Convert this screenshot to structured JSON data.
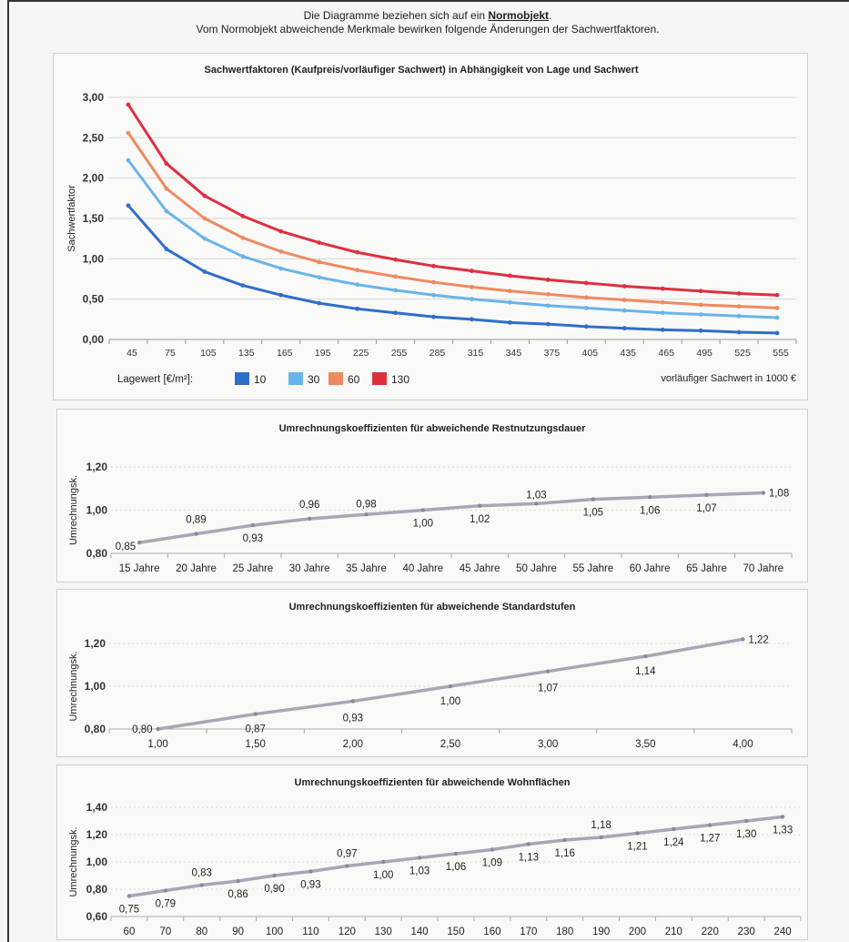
{
  "header": {
    "line1_prefix": "Die Diagramme beziehen sich auf ein ",
    "line1_link": "Normobjekt",
    "line1_suffix": ".",
    "line2": "Vom Normobjekt abweichende Merkmale bewirken folgende Änderungen der Sachwertfaktoren."
  },
  "legend": {
    "prefix": "Lagewert [€/m²]:"
  },
  "chart_data": [
    {
      "type": "line",
      "title": "Sachwertfaktoren (Kaufpreis/vorläufiger Sachwert) in Abhängigkeit von Lage und Sachwert",
      "xlabel": "vorläufiger Sachwert in 1000 €",
      "ylabel": "Sachwertfaktor",
      "ylim": [
        0,
        3
      ],
      "yticks": [
        "0,00",
        "0,50",
        "1,00",
        "1,50",
        "2,00",
        "2,50",
        "3,00"
      ],
      "categories": [
        "45",
        "75",
        "105",
        "135",
        "165",
        "195",
        "225",
        "255",
        "285",
        "315",
        "345",
        "375",
        "405",
        "435",
        "465",
        "495",
        "525",
        "555"
      ],
      "legend_position": "bottom-left",
      "grid": true,
      "series": [
        {
          "name": "10",
          "color": "#2f6ec7",
          "values": [
            1.66,
            1.12,
            0.84,
            0.67,
            0.55,
            0.45,
            0.38,
            0.33,
            0.28,
            0.25,
            0.21,
            0.19,
            0.16,
            0.14,
            0.12,
            0.11,
            0.09,
            0.08
          ]
        },
        {
          "name": "30",
          "color": "#69b4e8",
          "values": [
            2.22,
            1.59,
            1.25,
            1.03,
            0.88,
            0.77,
            0.68,
            0.61,
            0.55,
            0.5,
            0.46,
            0.42,
            0.39,
            0.36,
            0.33,
            0.31,
            0.29,
            0.27
          ]
        },
        {
          "name": "60",
          "color": "#ee8a62",
          "values": [
            2.56,
            1.87,
            1.5,
            1.26,
            1.09,
            0.96,
            0.86,
            0.78,
            0.71,
            0.65,
            0.6,
            0.56,
            0.52,
            0.49,
            0.46,
            0.43,
            0.41,
            0.39
          ]
        },
        {
          "name": "130",
          "color": "#dc3040",
          "values": [
            2.91,
            2.18,
            1.78,
            1.53,
            1.34,
            1.2,
            1.08,
            0.99,
            0.91,
            0.85,
            0.79,
            0.74,
            0.7,
            0.66,
            0.63,
            0.6,
            0.57,
            0.55
          ]
        }
      ]
    },
    {
      "type": "line",
      "title": "Umrechnungskoeffizienten für abweichende Restnutzungsdauer",
      "ylabel": "Umrechnungsk.",
      "ylim": [
        0.8,
        1.2
      ],
      "yticks": [
        "0,80",
        "1,00",
        "1,20"
      ],
      "categories": [
        "15 Jahre",
        "20 Jahre",
        "25 Jahre",
        "30 Jahre",
        "35 Jahre",
        "40 Jahre",
        "45 Jahre",
        "50 Jahre",
        "55 Jahre",
        "60 Jahre",
        "65 Jahre",
        "70 Jahre"
      ],
      "values": [
        0.85,
        0.89,
        0.93,
        0.96,
        0.98,
        1.0,
        1.02,
        1.03,
        1.05,
        1.06,
        1.07,
        1.08
      ],
      "labels": [
        "0,85",
        "0,89",
        "0,93",
        "0,96",
        "0,98",
        "1,00",
        "1,02",
        "1,03",
        "1,05",
        "1,06",
        "1,07",
        "1,08"
      ]
    },
    {
      "type": "line",
      "title": "Umrechnungskoeffizienten für abweichende Standardstufen",
      "ylabel": "Umrechnungsk.",
      "ylim": [
        0.8,
        1.2
      ],
      "yticks": [
        "0,80",
        "1,00",
        "1,20"
      ],
      "categories": [
        "1,00",
        "1,50",
        "2,00",
        "2,50",
        "3,00",
        "3,50",
        "4,00"
      ],
      "values": [
        0.8,
        0.87,
        0.93,
        1.0,
        1.07,
        1.14,
        1.22
      ],
      "labels": [
        "0,80",
        "0,87",
        "0,93",
        "1,00",
        "1,07",
        "1,14",
        "1,22"
      ]
    },
    {
      "type": "line",
      "title": "Umrechnungskoeffizienten für abweichende Wohnflächen",
      "ylabel": "Umrechnungsk.",
      "ylim": [
        0.6,
        1.4
      ],
      "yticks": [
        "0,60",
        "0,80",
        "1,00",
        "1,20",
        "1,40"
      ],
      "categories": [
        "60",
        "70",
        "80",
        "90",
        "100",
        "110",
        "120",
        "130",
        "140",
        "150",
        "160",
        "170",
        "180",
        "190",
        "200",
        "210",
        "220",
        "230",
        "240"
      ],
      "values": [
        0.75,
        0.79,
        0.83,
        0.86,
        0.9,
        0.93,
        0.97,
        1.0,
        1.03,
        1.06,
        1.09,
        1.13,
        1.16,
        1.18,
        1.21,
        1.24,
        1.27,
        1.3,
        1.33
      ],
      "labels": [
        "0,75",
        "0,79",
        "0,83",
        "0,86",
        "0,90",
        "0,93",
        "0,97",
        "1,00",
        "1,03",
        "1,06",
        "1,09",
        "1,13",
        "1,16",
        "1,18",
        "1,21",
        "1,24",
        "1,27",
        "1,30",
        "1,33"
      ]
    }
  ]
}
